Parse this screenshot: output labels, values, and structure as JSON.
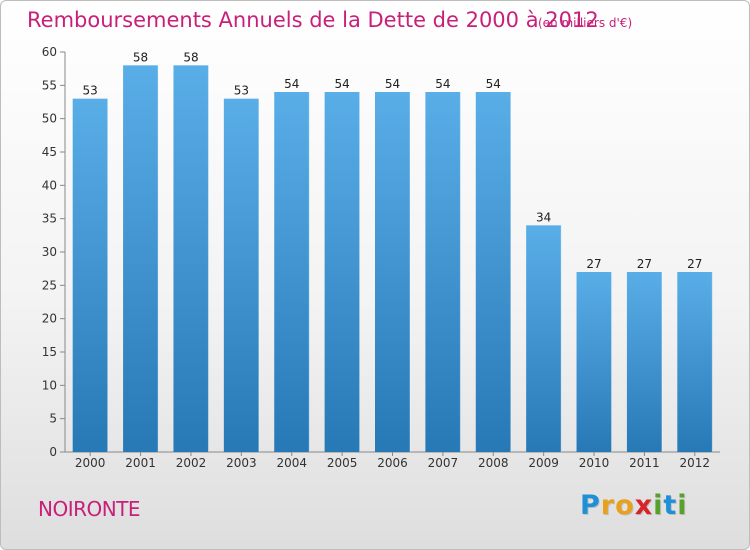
{
  "title": "Remboursements Annuels de la Dette de 2000 à 2012",
  "subtitle": "(en milliers d'€)",
  "commune": "NOIRONTE",
  "brand": {
    "letters": [
      "P",
      "r",
      "o",
      "x",
      "i",
      "t",
      "i"
    ],
    "colors": [
      "#1f8fd6",
      "#e8a11c",
      "#e8a11c",
      "#d8232a",
      "#5aa02c",
      "#1f8fd6",
      "#5aa02c"
    ]
  },
  "colors": {
    "title": "#c8207a",
    "bar_top": "#5aaee8",
    "bar_bottom": "#2779b5"
  },
  "chart_data": {
    "type": "bar",
    "title": "Remboursements Annuels de la Dette de 2000 à 2012",
    "xlabel": "",
    "ylabel": "",
    "categories": [
      "2000",
      "2001",
      "2002",
      "2003",
      "2004",
      "2005",
      "2006",
      "2007",
      "2008",
      "2009",
      "2010",
      "2011",
      "2012"
    ],
    "values": [
      53,
      58,
      58,
      53,
      54,
      54,
      54,
      54,
      54,
      34,
      27,
      27,
      27
    ],
    "ylim": [
      0,
      60
    ],
    "yticks": [
      0,
      5,
      10,
      15,
      20,
      25,
      30,
      35,
      40,
      45,
      50,
      55,
      60
    ],
    "grid": false,
    "data_labels": true
  }
}
